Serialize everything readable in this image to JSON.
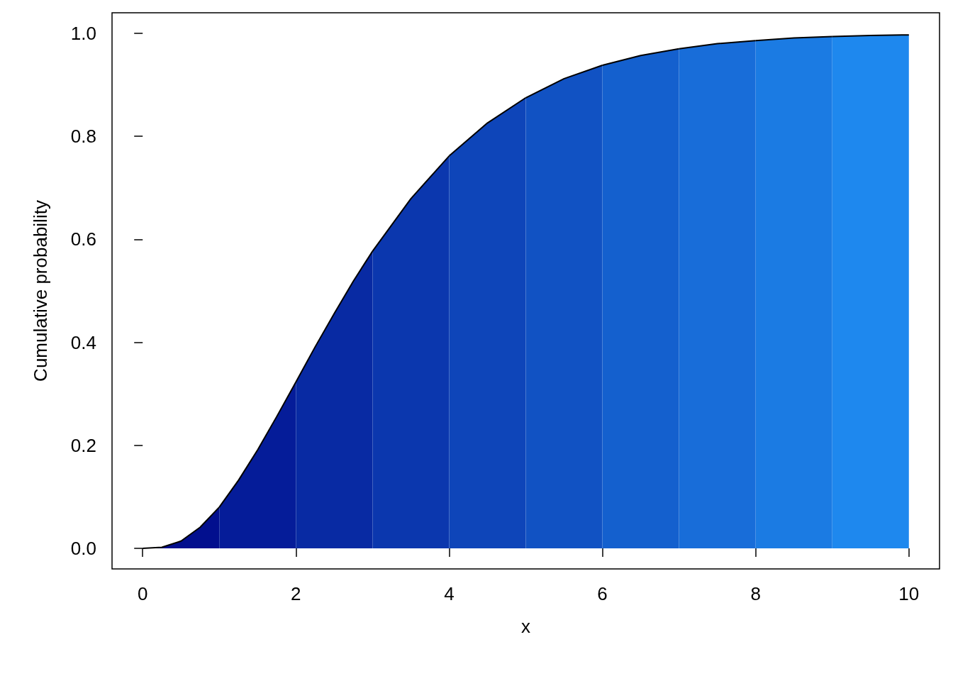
{
  "chart_data": {
    "type": "area",
    "xlabel": "x",
    "ylabel": "Cumulative probability",
    "xlim": [
      -0.4,
      10.4
    ],
    "ylim": [
      -0.04,
      1.04
    ],
    "xticks": [
      0,
      2,
      4,
      6,
      8,
      10
    ],
    "yticks": [
      {
        "value": 0,
        "label": "0.0"
      },
      {
        "value": 0.2,
        "label": "0.2"
      },
      {
        "value": 0.4,
        "label": "0.4"
      },
      {
        "value": 0.6,
        "label": "0.6"
      },
      {
        "value": 0.8,
        "label": "0.8"
      },
      {
        "value": 1,
        "label": "1.0"
      }
    ],
    "grid": false,
    "marker": "none",
    "line_style": "solid",
    "series": [
      {
        "color": "#020f8e",
        "x": [
          0,
          0.25,
          0.5,
          0.75,
          1
        ],
        "values": [
          0,
          0.002,
          0.014,
          0.041,
          0.08
        ]
      },
      {
        "color": "#051c99",
        "x": [
          1,
          1.25,
          1.5,
          1.75,
          2
        ],
        "values": [
          0.08,
          0.132,
          0.191,
          0.256,
          0.323
        ]
      },
      {
        "color": "#082aa3",
        "x": [
          2,
          2.25,
          2.5,
          2.75,
          3
        ],
        "values": [
          0.323,
          0.391,
          0.456,
          0.519,
          0.577
        ]
      },
      {
        "color": "#0b37ae",
        "x": [
          3,
          3.5,
          4
        ],
        "values": [
          0.577,
          0.679,
          0.762
        ]
      },
      {
        "color": "#0e45b9",
        "x": [
          4,
          4.5,
          5
        ],
        "values": [
          0.762,
          0.826,
          0.875
        ]
      },
      {
        "color": "#1152c3",
        "x": [
          5,
          5.5,
          6
        ],
        "values": [
          0.875,
          0.912,
          0.938
        ]
      },
      {
        "color": "#1460ce",
        "x": [
          6,
          6.5,
          7
        ],
        "values": [
          0.938,
          0.957,
          0.97
        ]
      },
      {
        "color": "#186dd9",
        "x": [
          7,
          7.5,
          8
        ],
        "values": [
          0.97,
          0.98,
          0.986
        ]
      },
      {
        "color": "#1b7be3",
        "x": [
          8,
          8.5,
          9
        ],
        "values": [
          0.986,
          0.991,
          0.994
        ]
      },
      {
        "color": "#1e88ee",
        "x": [
          9,
          9.5,
          10
        ],
        "values": [
          0.994,
          0.996,
          0.997
        ]
      }
    ]
  }
}
